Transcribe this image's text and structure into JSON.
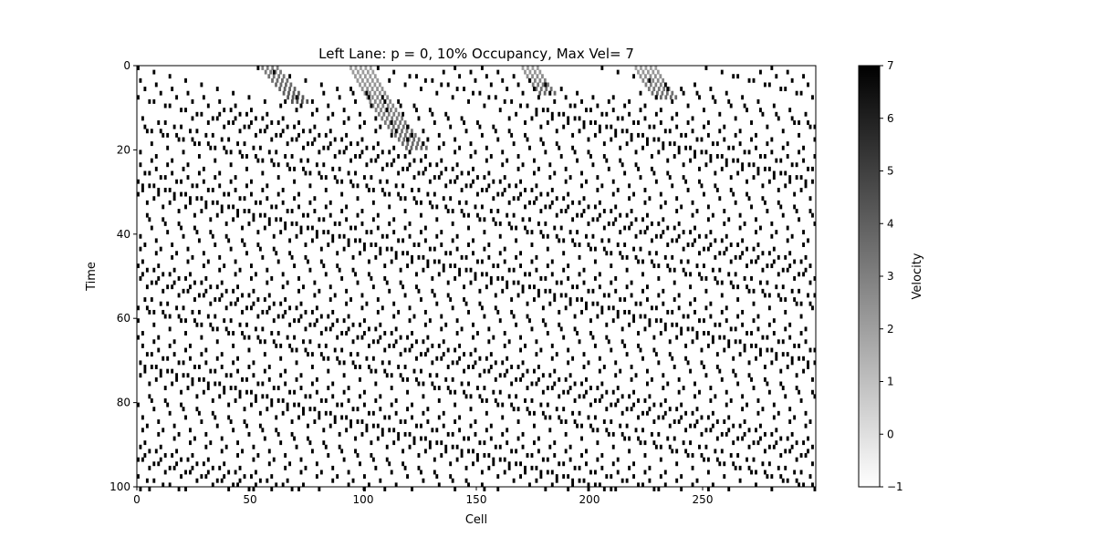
{
  "chart_data": {
    "type": "heatmap",
    "title": "Left Lane: p = 0, 10% Occupancy, Max Vel= 7",
    "xlabel": "Cell",
    "ylabel": "Time",
    "x_range": [
      0,
      300
    ],
    "y_range": [
      0,
      100
    ],
    "y_inverted": true,
    "x_ticks": [
      0,
      50,
      100,
      150,
      200,
      250
    ],
    "y_ticks": [
      0,
      20,
      40,
      60,
      80,
      100
    ],
    "grid": false,
    "colormap": "gray_r",
    "colorbar": {
      "label": "Velocity",
      "min": -1,
      "max": 7,
      "ticks": [
        -1,
        0,
        1,
        2,
        3,
        4,
        5,
        6,
        7
      ],
      "low_color": "#ffffff",
      "high_color": "#000000"
    },
    "empty_value": -1,
    "cruise_velocity": 7,
    "trajectories": [
      {
        "x0": 94,
        "t0": 0,
        "t1": 19,
        "v0": 2,
        "velocity_after_ramp": 7,
        "t_ramp_end": 19,
        "count": 5
      },
      {
        "x0": 55,
        "t0": 0,
        "t1": 8,
        "v0": 3,
        "velocity_after_ramp": 7,
        "t_ramp_end": 8,
        "count": 4
      },
      {
        "x0": 170,
        "t0": 0,
        "t1": 6,
        "v0": 2,
        "velocity_after_ramp": 7,
        "t_ramp_end": 6,
        "count": 4
      },
      {
        "x0": 220,
        "t0": 0,
        "t1": 7,
        "v0": 2,
        "velocity_after_ramp": 7,
        "t_ramp_end": 7,
        "count": 5
      }
    ]
  }
}
